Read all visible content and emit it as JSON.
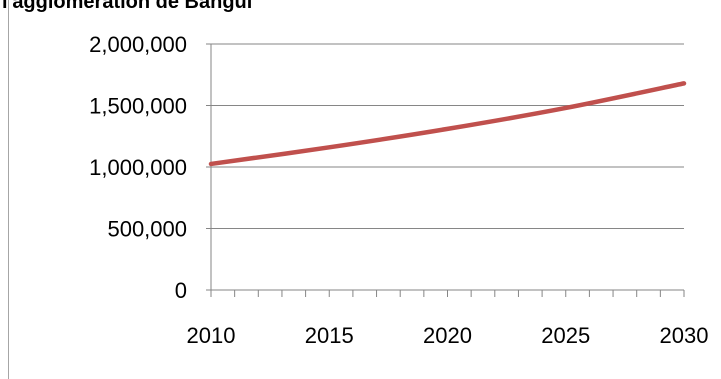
{
  "chart_data": {
    "type": "line",
    "title": "l'agglomération de Bangui",
    "x": [
      2010,
      2015,
      2020,
      2025,
      2030
    ],
    "series": [
      {
        "values": [
          1025000,
          1160000,
          1310000,
          1480000,
          1680000
        ],
        "color": "#c0504d"
      }
    ],
    "xlim": [
      2010,
      2030
    ],
    "ylim": [
      0,
      2000000
    ],
    "xticks": [
      "2010",
      "2015",
      "2020",
      "2025",
      "2030"
    ],
    "yticks": [
      "0",
      "500,000",
      "1,000,000",
      "1,500,000",
      "2,000,000"
    ],
    "grid": true,
    "legend": "none"
  }
}
